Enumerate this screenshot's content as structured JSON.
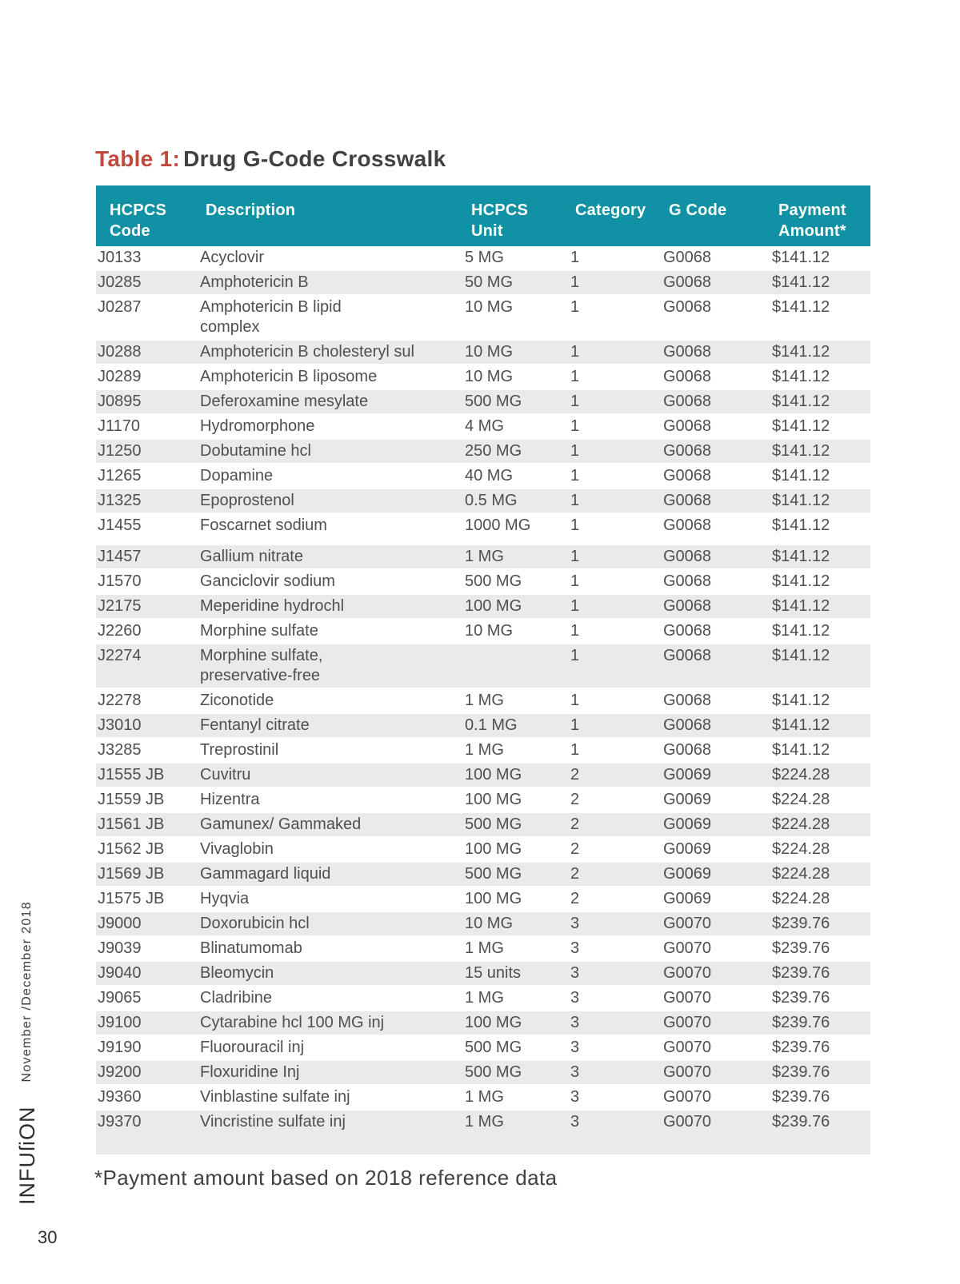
{
  "page_number": "30",
  "sidebar": {
    "logo": "INFUſiON",
    "issue": "November /December 2018"
  },
  "title": {
    "prefix": "Table 1:",
    "text": "Drug G-Code Crosswalk"
  },
  "footnote": "*Payment amount based on 2018 reference data",
  "table": {
    "columns": [
      "HCPCS\nCode",
      "Description",
      "HCPCS\nUnit",
      "Category",
      "G Code",
      "Payment\nAmount*"
    ],
    "gap_before": [
      "J1457"
    ],
    "rows": [
      [
        "J0133",
        "Acyclovir",
        "5 MG",
        "1",
        "G0068",
        "$141.12"
      ],
      [
        "J0285",
        "Amphotericin B",
        "50 MG",
        "1",
        "G0068",
        "$141.12"
      ],
      [
        "J0287",
        "Amphotericin B lipid\ncomplex",
        "10 MG",
        "1",
        "G0068",
        "$141.12"
      ],
      [
        "J0288",
        "Amphotericin B cholesteryl sul",
        "10 MG",
        "1",
        "G0068",
        "$141.12"
      ],
      [
        "J0289",
        "Amphotericin B liposome",
        "10 MG",
        "1",
        "G0068",
        "$141.12"
      ],
      [
        "J0895",
        "Deferoxamine mesylate",
        "500 MG",
        "1",
        "G0068",
        "$141.12"
      ],
      [
        "J1170",
        "Hydromorphone",
        "4 MG",
        "1",
        "G0068",
        "$141.12"
      ],
      [
        "J1250",
        "Dobutamine hcl",
        "250 MG",
        "1",
        "G0068",
        "$141.12"
      ],
      [
        "J1265",
        "Dopamine",
        "40 MG",
        "1",
        "G0068",
        "$141.12"
      ],
      [
        "J1325",
        "Epoprostenol",
        "0.5 MG",
        "1",
        "G0068",
        "$141.12"
      ],
      [
        "J1455",
        "Foscarnet sodium",
        "1000 MG",
        "1",
        "G0068",
        "$141.12"
      ],
      [
        "J1457",
        "Gallium nitrate",
        "1 MG",
        "1",
        "G0068",
        "$141.12"
      ],
      [
        "J1570",
        "Ganciclovir sodium",
        "500 MG",
        "1",
        "G0068",
        "$141.12"
      ],
      [
        "J2175",
        "Meperidine hydrochl",
        "100 MG",
        "1",
        "G0068",
        "$141.12"
      ],
      [
        "J2260",
        "Morphine sulfate",
        "10 MG",
        "1",
        "G0068",
        "$141.12"
      ],
      [
        "J2274",
        "Morphine sulfate,\npreservative-free",
        "",
        "1",
        "G0068",
        "$141.12"
      ],
      [
        "J2278",
        "Ziconotide",
        "1 MG",
        "1",
        "G0068",
        "$141.12"
      ],
      [
        "J3010",
        "Fentanyl citrate",
        "0.1 MG",
        "1",
        "G0068",
        "$141.12"
      ],
      [
        "J3285",
        "Treprostinil",
        "1 MG",
        "1",
        "G0068",
        "$141.12"
      ],
      [
        "J1555 JB",
        "Cuvitru",
        "100 MG",
        "2",
        "G0069",
        "$224.28"
      ],
      [
        "J1559 JB",
        "Hizentra",
        "100 MG",
        "2",
        "G0069",
        "$224.28"
      ],
      [
        "J1561 JB",
        "Gamunex/ Gammaked",
        "500 MG",
        "2",
        "G0069",
        "$224.28"
      ],
      [
        "J1562 JB",
        "Vivaglobin",
        "100 MG",
        "2",
        "G0069",
        "$224.28"
      ],
      [
        "J1569 JB",
        "Gammagard liquid",
        "500 MG",
        "2",
        "G0069",
        "$224.28"
      ],
      [
        "J1575 JB",
        "Hyqvia",
        "100 MG",
        "2",
        "G0069",
        "$224.28"
      ],
      [
        "J9000",
        "Doxorubicin hcl",
        "10 MG",
        "3",
        "G0070",
        "$239.76"
      ],
      [
        "J9039",
        "Blinatumomab",
        "1 MG",
        "3",
        "G0070",
        "$239.76"
      ],
      [
        "J9040",
        "Bleomycin",
        "15 units",
        "3",
        "G0070",
        "$239.76"
      ],
      [
        "J9065",
        "Cladribine",
        "1 MG",
        "3",
        "G0070",
        "$239.76"
      ],
      [
        "J9100",
        "Cytarabine hcl 100 MG inj",
        "100 MG",
        "3",
        "G0070",
        "$239.76"
      ],
      [
        "J9190",
        "Fluorouracil inj",
        "500 MG",
        "3",
        "G0070",
        "$239.76"
      ],
      [
        "J9200",
        "Floxuridine Inj",
        "500 MG",
        "3",
        "G0070",
        "$239.76"
      ],
      [
        "J9360",
        "Vinblastine sulfate inj",
        "1 MG",
        "3",
        "G0070",
        "$239.76"
      ],
      [
        "J9370",
        "Vincristine sulfate inj",
        "1 MG",
        "3",
        "G0070",
        "$239.76"
      ]
    ]
  },
  "colors": {
    "header_bg": "#1192A4",
    "row_alt_bg": "#E9EAEB",
    "title_accent": "#C14A3F",
    "text_dark": "#414042",
    "text_body": "#4E4F51"
  }
}
